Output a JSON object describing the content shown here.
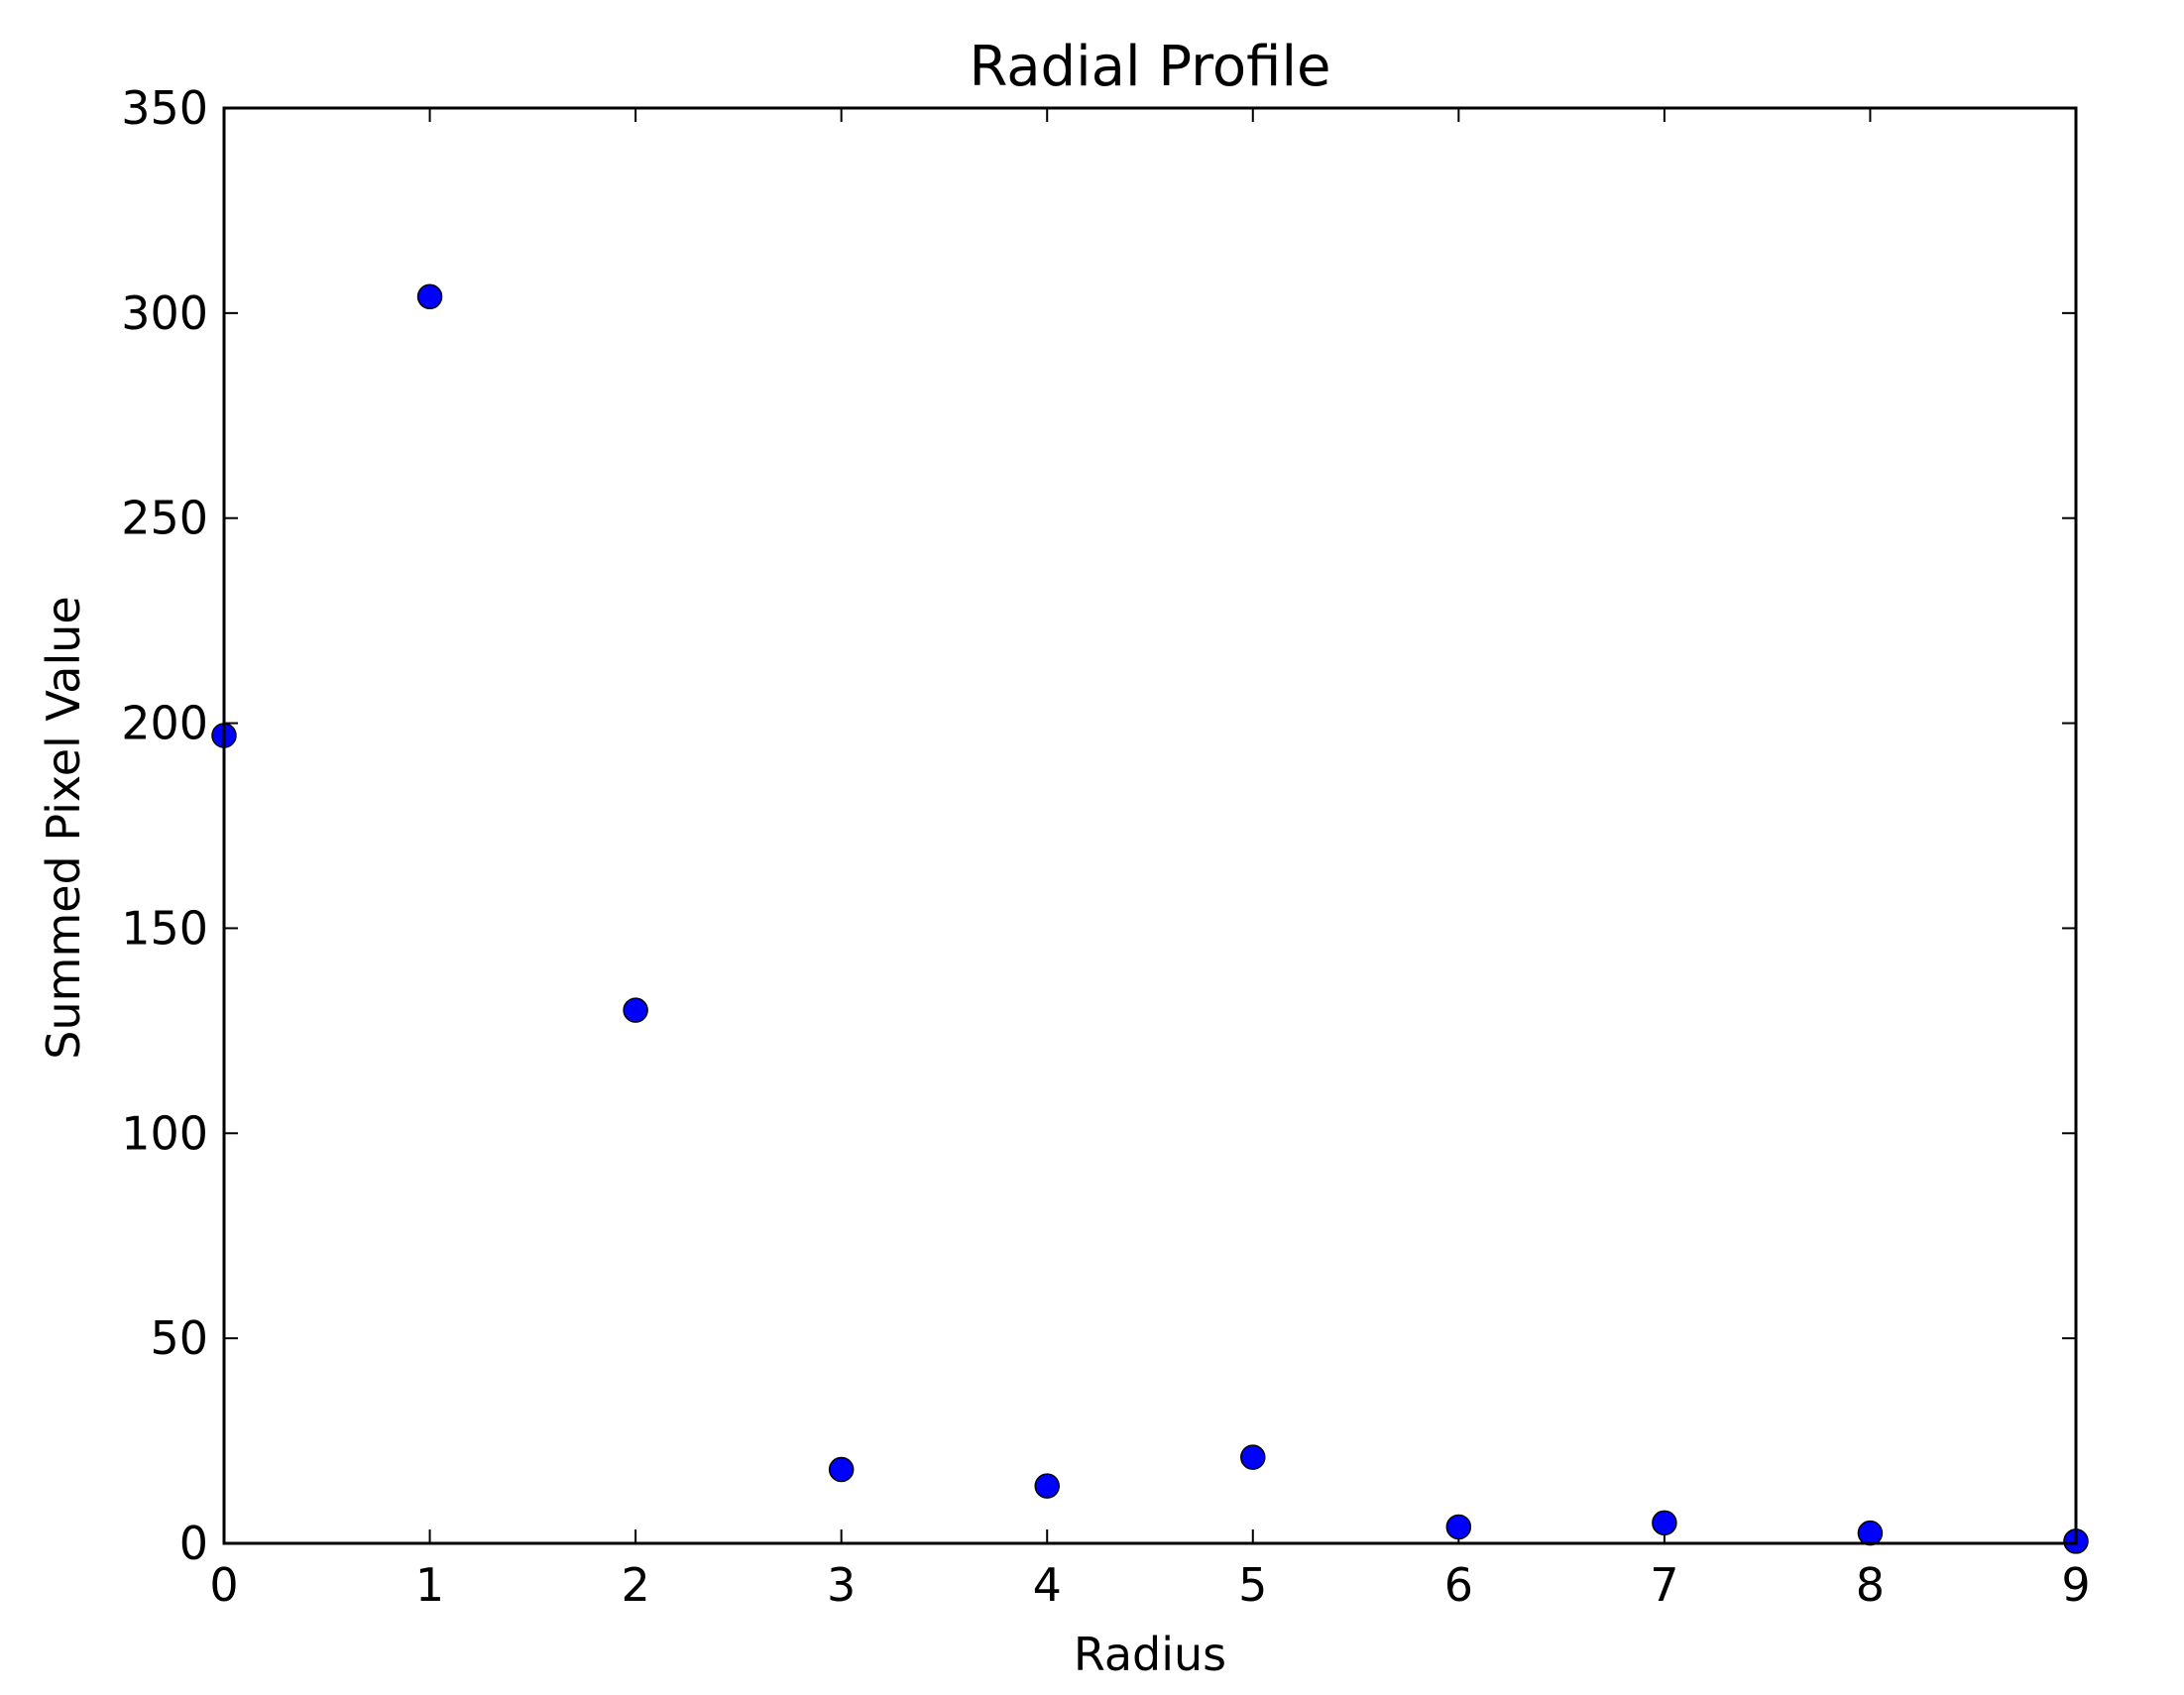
{
  "chart_data": {
    "type": "scatter",
    "title": "Radial Profile",
    "xlabel": "Radius",
    "ylabel": "Summed Pixel Value",
    "xlim": [
      0,
      9
    ],
    "ylim": [
      0,
      350
    ],
    "xticks": [
      0,
      1,
      2,
      3,
      4,
      5,
      6,
      7,
      8,
      9
    ],
    "yticks": [
      0,
      50,
      100,
      150,
      200,
      250,
      300,
      350
    ],
    "grid": false,
    "legend": "none",
    "marker_color": "#0000ff",
    "marker_edge_color": "#000000",
    "series": [
      {
        "x": [
          0,
          1,
          2,
          3,
          4,
          5,
          6,
          7,
          8,
          9
        ],
        "y": [
          197,
          304,
          130,
          18,
          14,
          21,
          4,
          5,
          2.5,
          0.5
        ]
      }
    ]
  }
}
